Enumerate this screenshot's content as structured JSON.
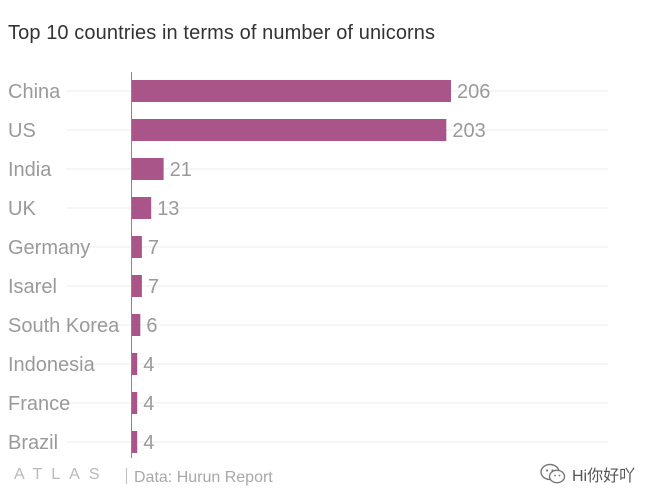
{
  "chart_data": {
    "type": "bar",
    "orientation": "horizontal",
    "title": "Top 10 countries in terms of number of unicorns",
    "categories": [
      "China",
      "US",
      "India",
      "UK",
      "Germany",
      "Isarel",
      "South Korea",
      "Indonesia",
      "France",
      "Brazil"
    ],
    "values": [
      206,
      203,
      21,
      13,
      7,
      7,
      6,
      4,
      4,
      4
    ],
    "xlabel": "",
    "ylabel": "",
    "xlim": [
      0,
      206
    ],
    "grid": true,
    "legend": "none",
    "bar_color": "#a9558a"
  },
  "footer": {
    "brand": "ATLAS",
    "source": "Data: Hurun Report"
  },
  "watermark": {
    "icon": "wechat-icon",
    "text": "Hi你好吖"
  },
  "colors": {
    "bar": "#a9558a",
    "label": "#9a9a9a",
    "value": "#9a9a9a",
    "grid": "#eeeeee",
    "axis": "#888888"
  }
}
